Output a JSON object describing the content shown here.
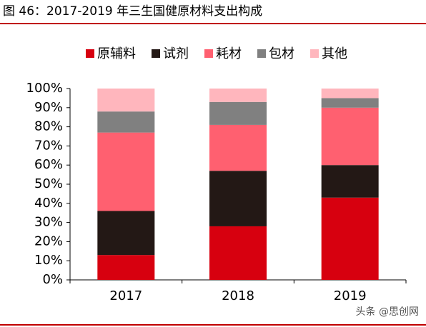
{
  "chart_data": {
    "type": "stacked-bar",
    "title": "图 46：2017-2019 年三生国健原材料支出构成",
    "categories": [
      "2017",
      "2018",
      "2019"
    ],
    "series": [
      {
        "name": "原辅料",
        "color": "#d7000f",
        "values": [
          13,
          28,
          43
        ]
      },
      {
        "name": "试剂",
        "color": "#231815",
        "values": [
          23,
          29,
          17
        ]
      },
      {
        "name": "耗材",
        "color": "#ff6070",
        "values": [
          41,
          24,
          30
        ]
      },
      {
        "name": "包材",
        "color": "#808080",
        "values": [
          11,
          12,
          5
        ]
      },
      {
        "name": "其他",
        "color": "#ffb6bd",
        "values": [
          12,
          7,
          5
        ]
      }
    ],
    "ylim": [
      0,
      100
    ],
    "yticks": [
      {
        "value": 0,
        "label": "0%"
      },
      {
        "value": 10,
        "label": "10%"
      },
      {
        "value": 20,
        "label": "20%"
      },
      {
        "value": 30,
        "label": "30%"
      },
      {
        "value": 40,
        "label": "40%"
      },
      {
        "value": 50,
        "label": "50%"
      },
      {
        "value": 60,
        "label": "60%"
      },
      {
        "value": 70,
        "label": "70%"
      },
      {
        "value": 80,
        "label": "80%"
      },
      {
        "value": 90,
        "label": "90%"
      },
      {
        "value": 100,
        "label": "100%"
      }
    ],
    "watermark": "头条 @思创网"
  }
}
